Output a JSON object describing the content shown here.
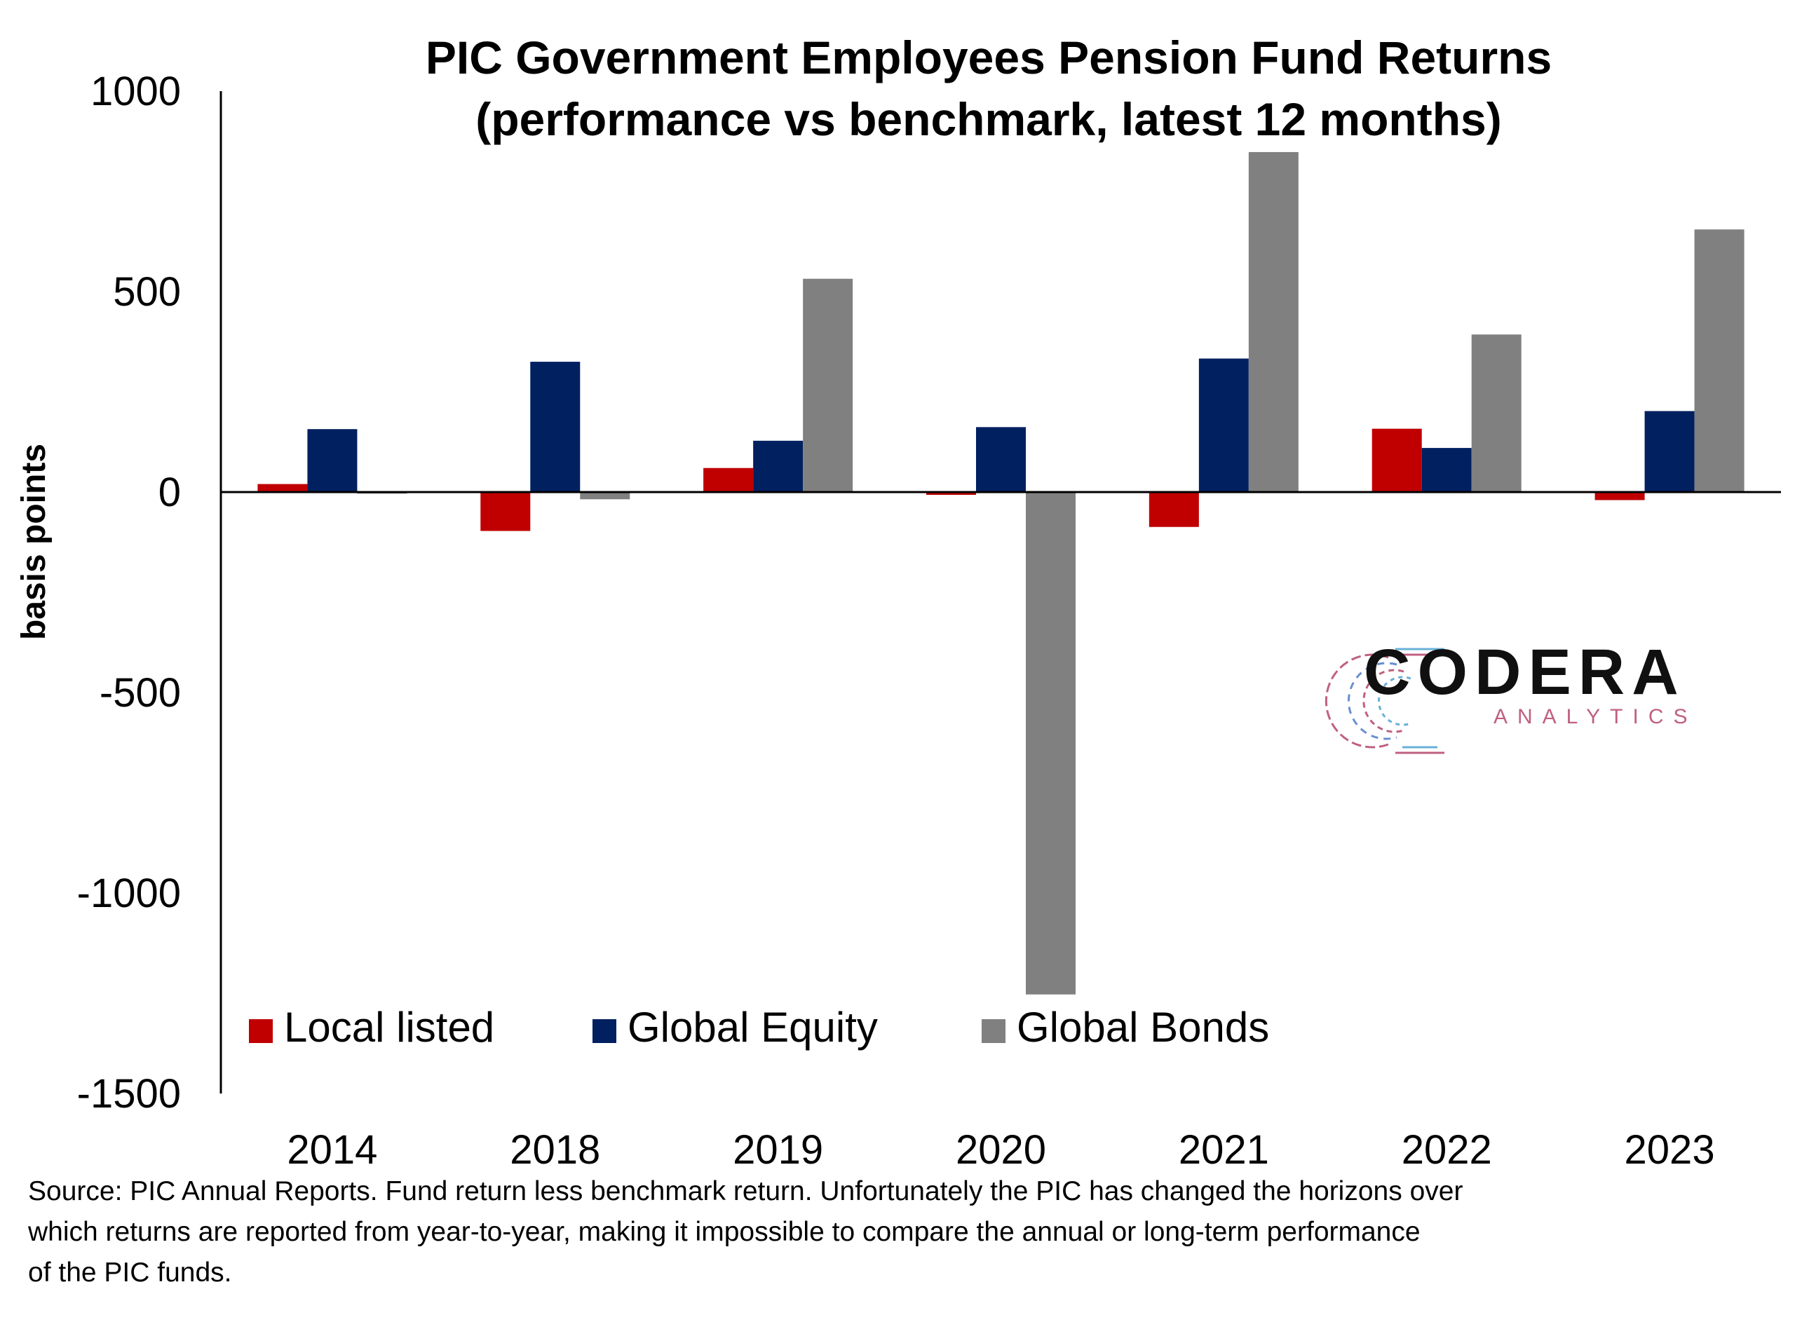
{
  "chart_data": {
    "type": "bar",
    "title_lines": [
      "PIC Government Employees Pension Fund Returns",
      "(performance vs benchmark, latest 12 months)"
    ],
    "xlabel": "",
    "ylabel": "basis points",
    "ylim": [
      -1500,
      1000
    ],
    "yticks": [
      1000,
      500,
      0,
      -500,
      -1000,
      -1500
    ],
    "categories": [
      "2014",
      "2018",
      "2019",
      "2020",
      "2021",
      "2022",
      "2023"
    ],
    "series": [
      {
        "name": "Local listed",
        "color": "#C00000",
        "values": [
          20,
          -97,
          60,
          -7,
          -87,
          158,
          -20
        ]
      },
      {
        "name": "Global Equity",
        "color": "#002060",
        "values": [
          157,
          325,
          128,
          162,
          333,
          110,
          202
        ]
      },
      {
        "name": "Global Bonds",
        "color": "#808080",
        "values": [
          -4,
          -18,
          532,
          -1253,
          848,
          393,
          655
        ]
      }
    ],
    "legend_position": "bottom-left",
    "grid": false
  },
  "source_note": {
    "lines": [
      "Source: PIC Annual Reports. Fund return less benchmark return. Unfortunately the PIC has changed the horizons over",
      "which returns are reported from year-to-year, making it impossible to compare the annual or long-term performance",
      "of the PIC funds."
    ]
  },
  "logo": {
    "word": "CODERA",
    "subtitle": "ANALYTICS",
    "subtitle_color": "#c06080"
  }
}
